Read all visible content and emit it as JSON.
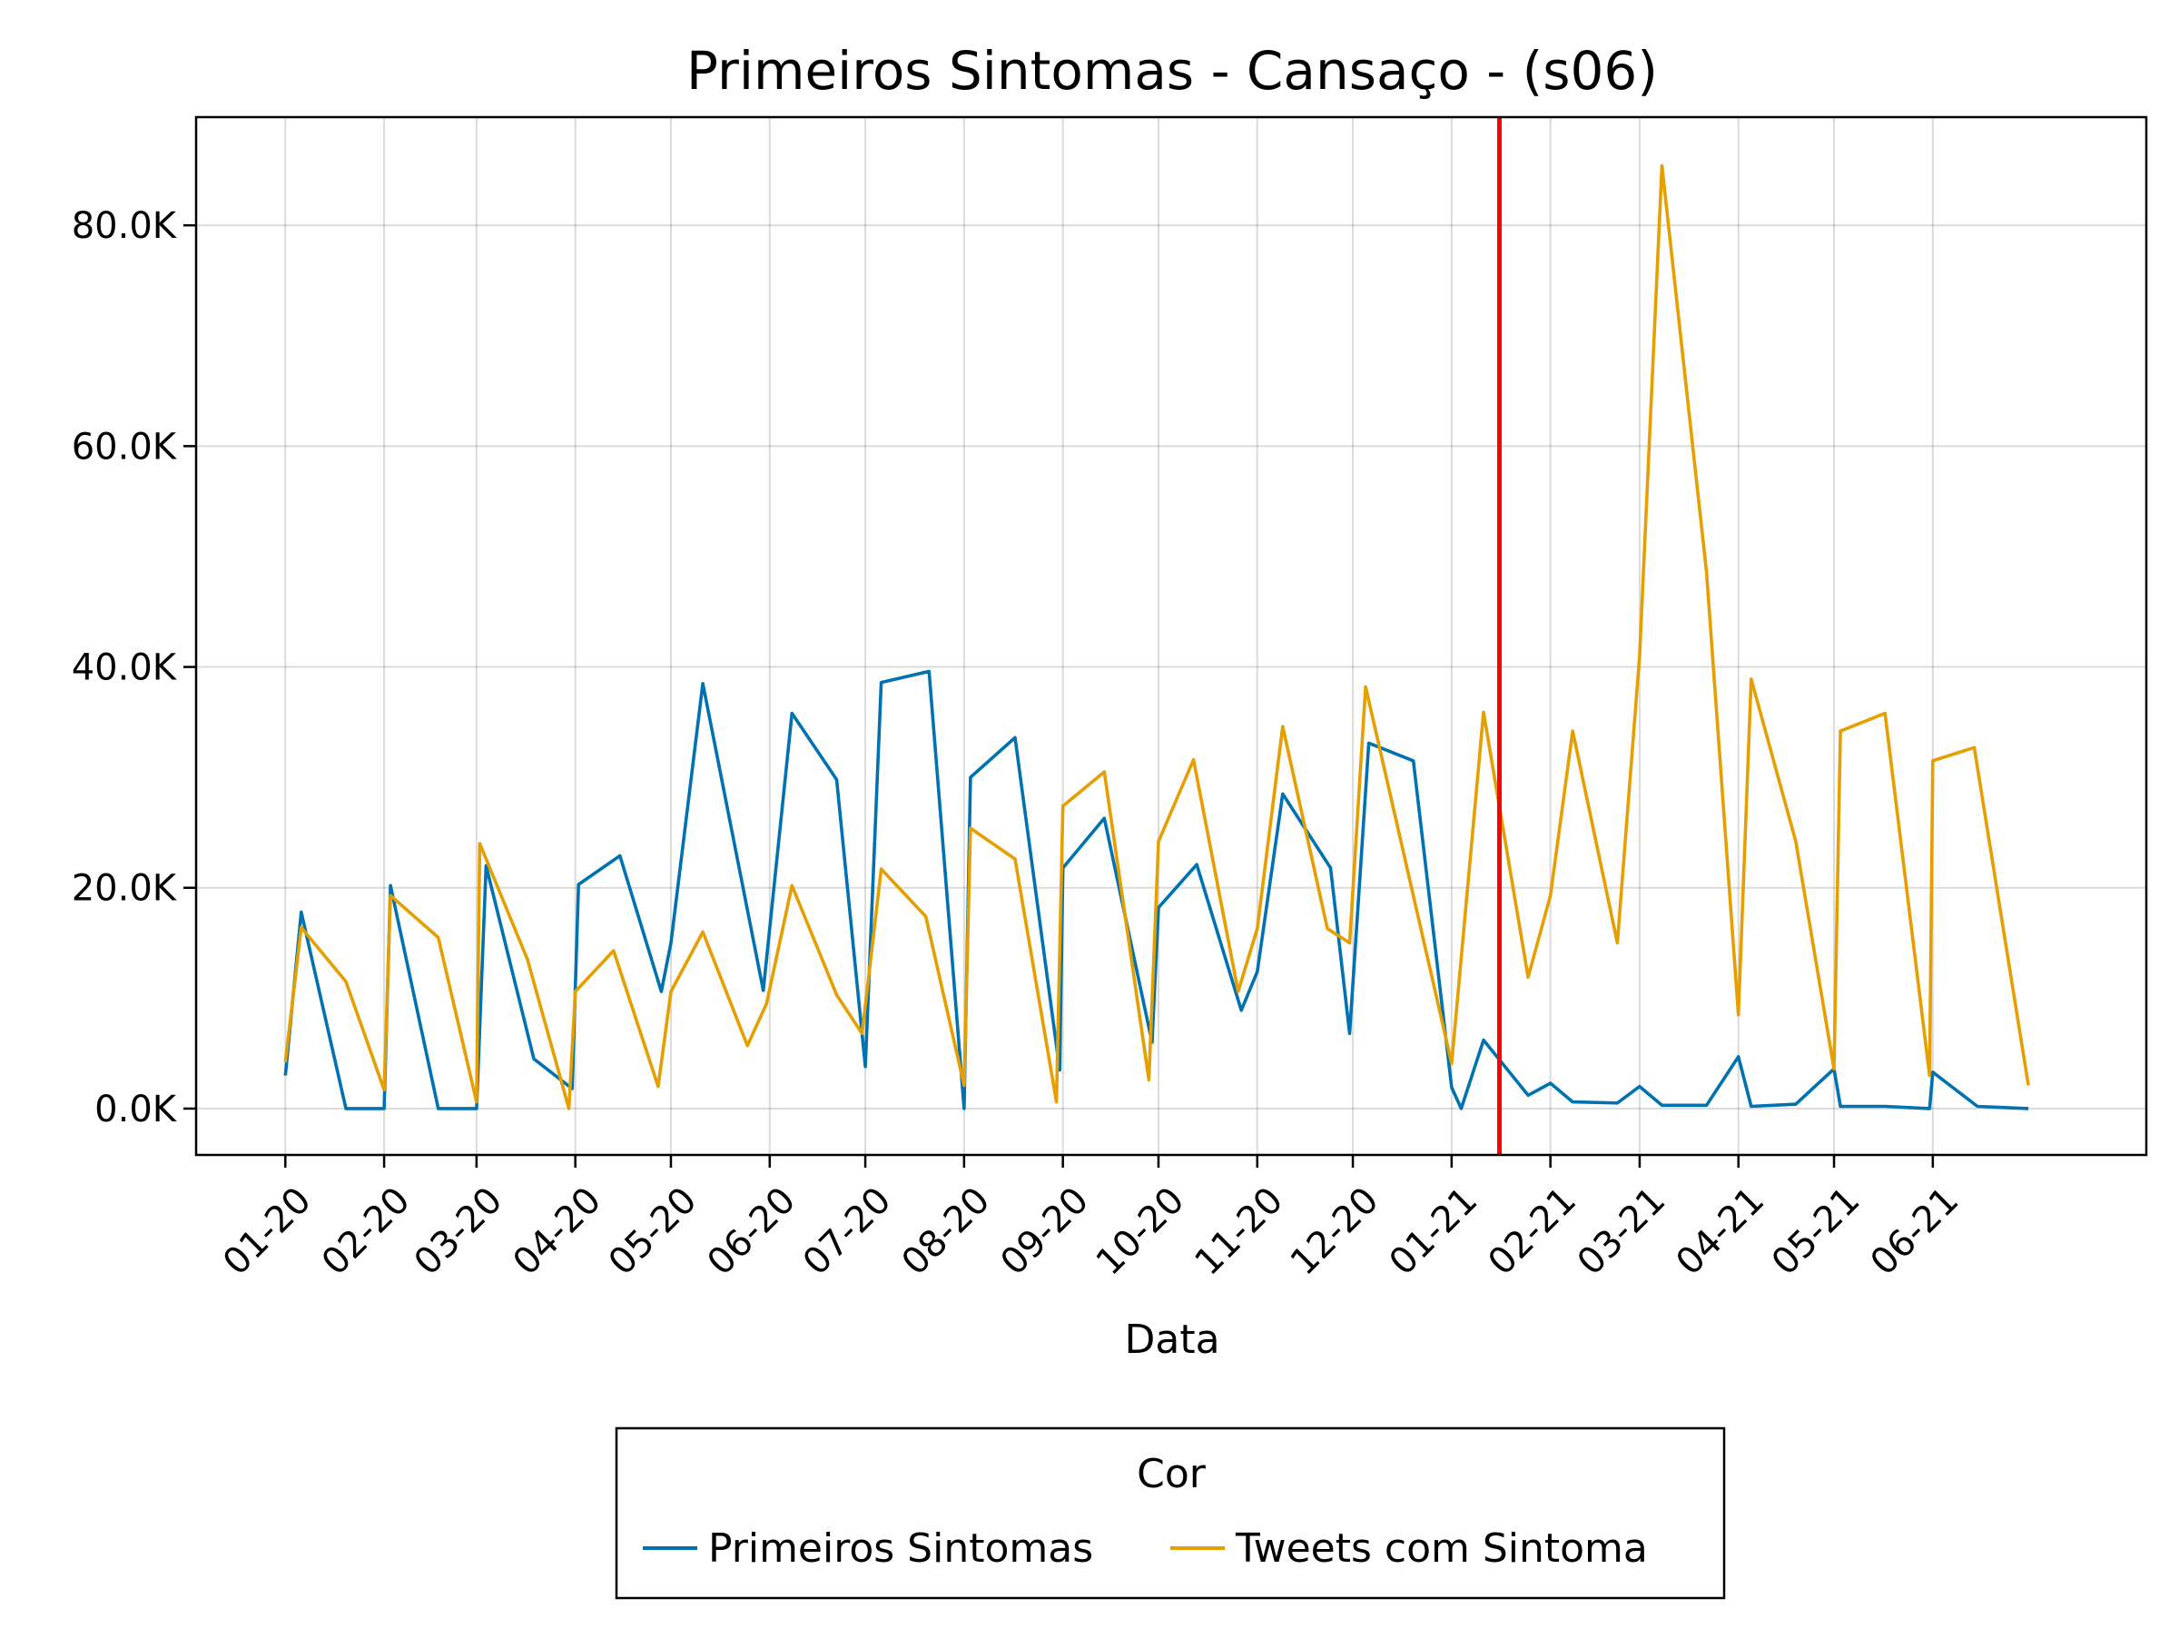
{
  "chart_data": {
    "type": "line",
    "title": "Primeiros Sintomas - Cansaço - (s06)",
    "xlabel": "Data",
    "ylabel": "",
    "x_ticks": [
      "01-20",
      "02-20",
      "03-20",
      "04-20",
      "05-20",
      "06-20",
      "07-20",
      "08-20",
      "09-20",
      "10-20",
      "11-20",
      "12-20",
      "01-21",
      "02-21",
      "03-21",
      "04-21",
      "05-21",
      "06-21"
    ],
    "y_ticks": [
      "0.0K",
      "20.0K",
      "40.0K",
      "60.0K",
      "80.0K"
    ],
    "ylim": [
      -4200,
      89800
    ],
    "xlim": [
      "2019-12-04",
      "2021-08-07"
    ],
    "grid": true,
    "reference_line": {
      "date": "2021-01-16",
      "color": "#ff0000"
    },
    "legend": {
      "title": "Cor",
      "placement": "bottom-center"
    },
    "series": [
      {
        "name": "Primeiros Sintomas",
        "color": "#0072b2",
        "points": [
          [
            "2020-01-01",
            3000
          ],
          [
            "2020-01-06",
            17800
          ],
          [
            "2020-01-20",
            0
          ],
          [
            "2020-02-01",
            0
          ],
          [
            "2020-02-03",
            20200
          ],
          [
            "2020-02-18",
            0
          ],
          [
            "2020-03-01",
            0
          ],
          [
            "2020-03-04",
            22000
          ],
          [
            "2020-03-19",
            4500
          ],
          [
            "2020-03-31",
            1800
          ],
          [
            "2020-04-02",
            20300
          ],
          [
            "2020-04-15",
            22900
          ],
          [
            "2020-04-28",
            10600
          ],
          [
            "2020-05-01",
            15000
          ],
          [
            "2020-05-11",
            38500
          ],
          [
            "2020-05-30",
            10700
          ],
          [
            "2020-06-08",
            35800
          ],
          [
            "2020-06-22",
            29800
          ],
          [
            "2020-07-01",
            3800
          ],
          [
            "2020-07-06",
            38600
          ],
          [
            "2020-07-21",
            39600
          ],
          [
            "2020-08-01",
            0
          ],
          [
            "2020-08-03",
            30000
          ],
          [
            "2020-08-17",
            33600
          ],
          [
            "2020-08-31",
            3500
          ],
          [
            "2020-09-01",
            21800
          ],
          [
            "2020-09-14",
            26300
          ],
          [
            "2020-09-29",
            6000
          ],
          [
            "2020-10-01",
            18200
          ],
          [
            "2020-10-13",
            22100
          ],
          [
            "2020-10-27",
            8900
          ],
          [
            "2020-11-01",
            12400
          ],
          [
            "2020-11-09",
            28500
          ],
          [
            "2020-11-24",
            21800
          ],
          [
            "2020-11-30",
            6800
          ],
          [
            "2020-12-06",
            33100
          ],
          [
            "2020-12-20",
            31500
          ],
          [
            "2021-01-01",
            1900
          ],
          [
            "2021-01-04",
            0
          ],
          [
            "2021-01-11",
            6200
          ],
          [
            "2021-01-25",
            1200
          ],
          [
            "2021-02-01",
            2300
          ],
          [
            "2021-02-08",
            600
          ],
          [
            "2021-02-22",
            500
          ],
          [
            "2021-03-01",
            2000
          ],
          [
            "2021-03-08",
            300
          ],
          [
            "2021-03-22",
            300
          ],
          [
            "2021-04-01",
            4700
          ],
          [
            "2021-04-05",
            200
          ],
          [
            "2021-04-19",
            400
          ],
          [
            "2021-05-01",
            3600
          ],
          [
            "2021-05-03",
            200
          ],
          [
            "2021-05-17",
            200
          ],
          [
            "2021-05-31",
            0
          ],
          [
            "2021-06-01",
            3300
          ],
          [
            "2021-06-15",
            200
          ],
          [
            "2021-07-01",
            0
          ]
        ]
      },
      {
        "name": "Tweets com Sintoma",
        "color": "#e69f00",
        "points": [
          [
            "2020-01-01",
            4200
          ],
          [
            "2020-01-06",
            16400
          ],
          [
            "2020-01-20",
            11500
          ],
          [
            "2020-02-01",
            1700
          ],
          [
            "2020-02-03",
            19300
          ],
          [
            "2020-02-18",
            15500
          ],
          [
            "2020-03-01",
            600
          ],
          [
            "2020-03-02",
            24000
          ],
          [
            "2020-03-17",
            13500
          ],
          [
            "2020-03-30",
            0
          ],
          [
            "2020-04-01",
            10600
          ],
          [
            "2020-04-13",
            14300
          ],
          [
            "2020-04-27",
            2000
          ],
          [
            "2020-05-01",
            10600
          ],
          [
            "2020-05-11",
            16000
          ],
          [
            "2020-05-25",
            5700
          ],
          [
            "2020-05-31",
            9500
          ],
          [
            "2020-06-08",
            20200
          ],
          [
            "2020-06-22",
            10300
          ],
          [
            "2020-06-30",
            6800
          ],
          [
            "2020-07-06",
            21700
          ],
          [
            "2020-07-20",
            17400
          ],
          [
            "2020-08-01",
            2100
          ],
          [
            "2020-08-03",
            25400
          ],
          [
            "2020-08-17",
            22600
          ],
          [
            "2020-08-30",
            600
          ],
          [
            "2020-09-01",
            27400
          ],
          [
            "2020-09-14",
            30500
          ],
          [
            "2020-09-28",
            2600
          ],
          [
            "2020-10-01",
            24200
          ],
          [
            "2020-10-12",
            31600
          ],
          [
            "2020-10-26",
            10600
          ],
          [
            "2020-11-01",
            16300
          ],
          [
            "2020-11-09",
            34600
          ],
          [
            "2020-11-23",
            16300
          ],
          [
            "2020-11-30",
            15000
          ],
          [
            "2020-12-05",
            38200
          ],
          [
            "2021-01-01",
            4100
          ],
          [
            "2021-01-11",
            35900
          ],
          [
            "2021-01-25",
            11900
          ],
          [
            "2021-02-01",
            19300
          ],
          [
            "2021-02-08",
            34200
          ],
          [
            "2021-02-22",
            15000
          ],
          [
            "2021-03-01",
            41000
          ],
          [
            "2021-03-08",
            85400
          ],
          [
            "2021-03-22",
            48600
          ],
          [
            "2021-04-01",
            8500
          ],
          [
            "2021-04-05",
            38900
          ],
          [
            "2021-04-19",
            24200
          ],
          [
            "2021-05-01",
            3600
          ],
          [
            "2021-05-03",
            34200
          ],
          [
            "2021-05-17",
            35800
          ],
          [
            "2021-05-31",
            3000
          ],
          [
            "2021-06-01",
            31500
          ],
          [
            "2021-06-14",
            32700
          ],
          [
            "2021-07-01",
            2100
          ]
        ]
      }
    ]
  }
}
